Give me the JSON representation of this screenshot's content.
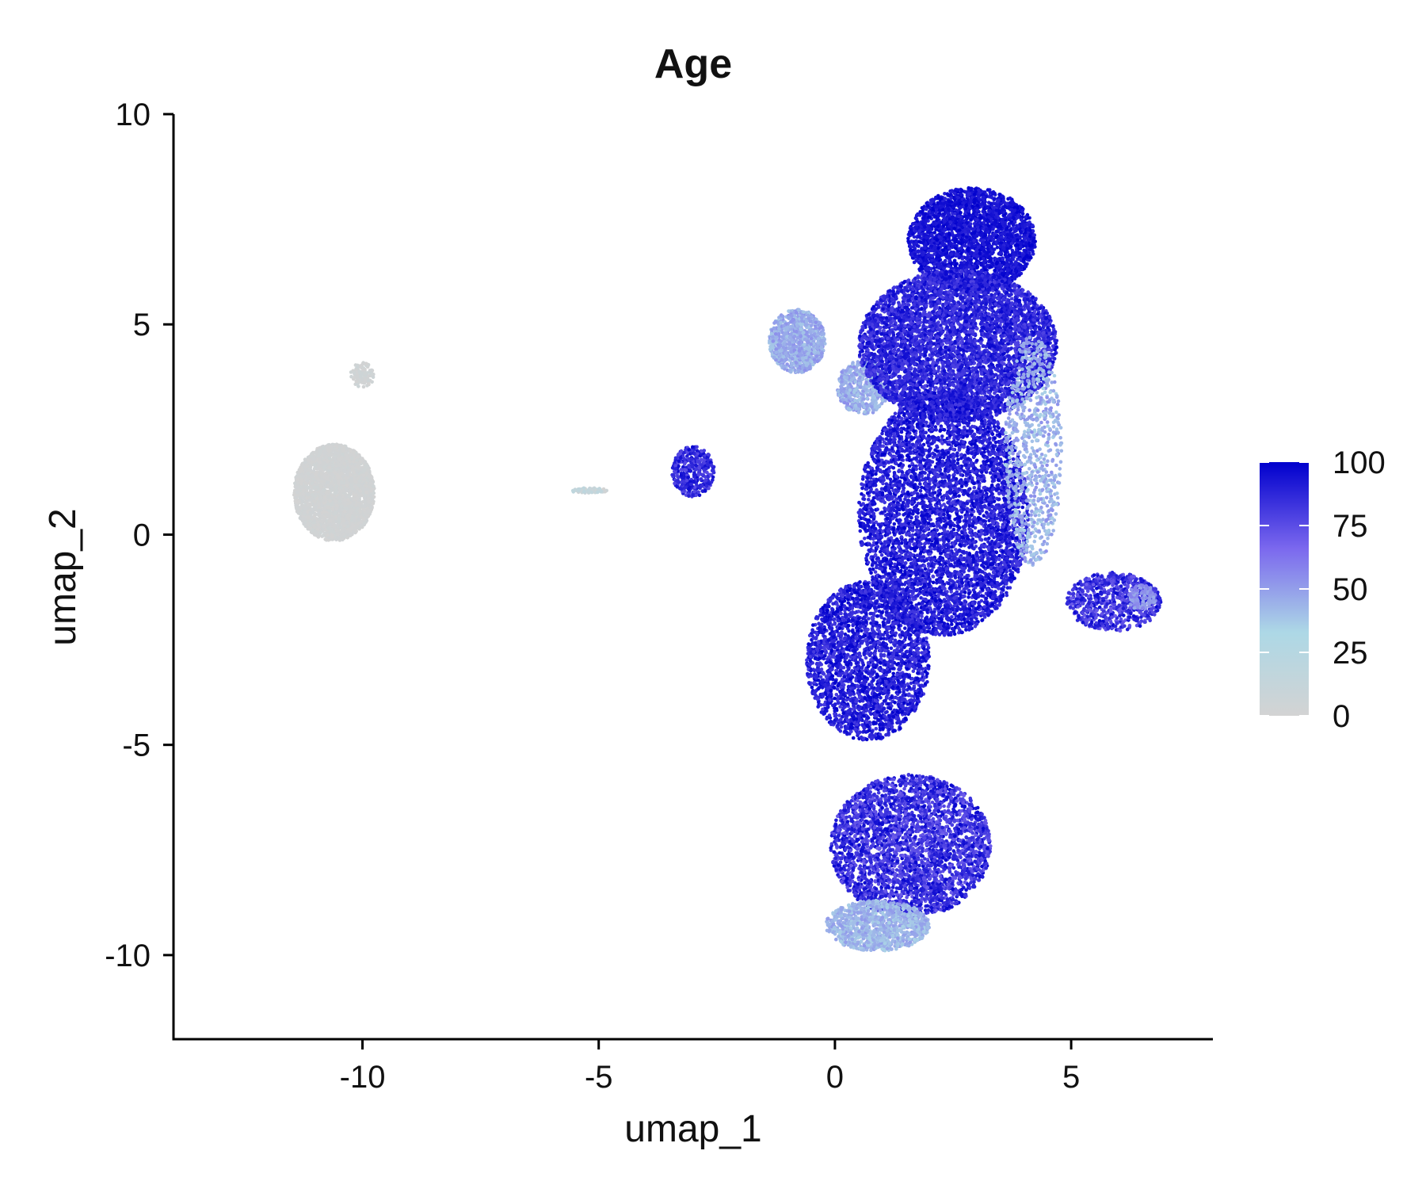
{
  "chart_data": {
    "type": "scatter",
    "title": "Age",
    "xlabel": "umap_1",
    "ylabel": "umap_2",
    "xlim": [
      -14,
      8
    ],
    "ylim": [
      -12,
      10
    ],
    "x_ticks": [
      -10,
      -5,
      0,
      5
    ],
    "y_ticks": [
      -10,
      -5,
      0,
      5,
      10
    ],
    "grid": false,
    "point_color_scale": {
      "name": "Age",
      "min": 0,
      "max": 100,
      "ticks": [
        0,
        25,
        50,
        75,
        100
      ],
      "colors": [
        "#d3d3d3",
        "#add8e6",
        "#7b68ee",
        "#0000cd"
      ]
    },
    "legend_position": "right",
    "clusters": [
      {
        "center": [
          -10.6,
          1.0
        ],
        "spread": [
          1.7,
          2.3
        ],
        "n": 3200,
        "value": [
          0,
          4
        ]
      },
      {
        "center": [
          -10.0,
          3.8
        ],
        "spread": [
          0.5,
          0.6
        ],
        "n": 120,
        "value": [
          0,
          6
        ]
      },
      {
        "center": [
          -5.2,
          1.05
        ],
        "spread": [
          0.8,
          0.12
        ],
        "n": 70,
        "value": [
          0,
          20
        ]
      },
      {
        "center": [
          -3.0,
          1.5
        ],
        "spread": [
          0.9,
          1.2
        ],
        "n": 380,
        "value": [
          75,
          97
        ]
      },
      {
        "center": [
          -0.8,
          4.6
        ],
        "spread": [
          1.2,
          1.5
        ],
        "n": 900,
        "value": [
          38,
          55
        ]
      },
      {
        "center": [
          0.6,
          3.5
        ],
        "spread": [
          1.1,
          1.3
        ],
        "n": 500,
        "value": [
          38,
          55
        ]
      },
      {
        "center": [
          2.9,
          7.0
        ],
        "spread": [
          2.7,
          2.5
        ],
        "n": 2600,
        "value": [
          88,
          100
        ]
      },
      {
        "center": [
          2.6,
          4.5
        ],
        "spread": [
          4.2,
          3.6
        ],
        "n": 5200,
        "value": [
          78,
          98
        ]
      },
      {
        "center": [
          2.3,
          0.5
        ],
        "spread": [
          3.6,
          5.8
        ],
        "n": 5200,
        "value": [
          80,
          100
        ]
      },
      {
        "center": [
          0.7,
          -3.0
        ],
        "spread": [
          2.6,
          3.8
        ],
        "n": 2600,
        "value": [
          80,
          100
        ]
      },
      {
        "center": [
          4.2,
          2.0
        ],
        "spread": [
          1.2,
          5.5
        ],
        "n": 800,
        "value": [
          35,
          55
        ]
      },
      {
        "center": [
          1.6,
          -7.4
        ],
        "spread": [
          3.4,
          3.4
        ],
        "n": 3200,
        "value": [
          70,
          98
        ]
      },
      {
        "center": [
          0.9,
          -9.3
        ],
        "spread": [
          2.2,
          1.2
        ],
        "n": 1100,
        "value": [
          35,
          52
        ]
      },
      {
        "center": [
          5.9,
          -1.6
        ],
        "spread": [
          2.0,
          1.4
        ],
        "n": 750,
        "value": [
          70,
          98
        ]
      },
      {
        "center": [
          6.5,
          -1.5
        ],
        "spread": [
          0.6,
          0.6
        ],
        "n": 120,
        "value": [
          45,
          60
        ]
      }
    ]
  }
}
